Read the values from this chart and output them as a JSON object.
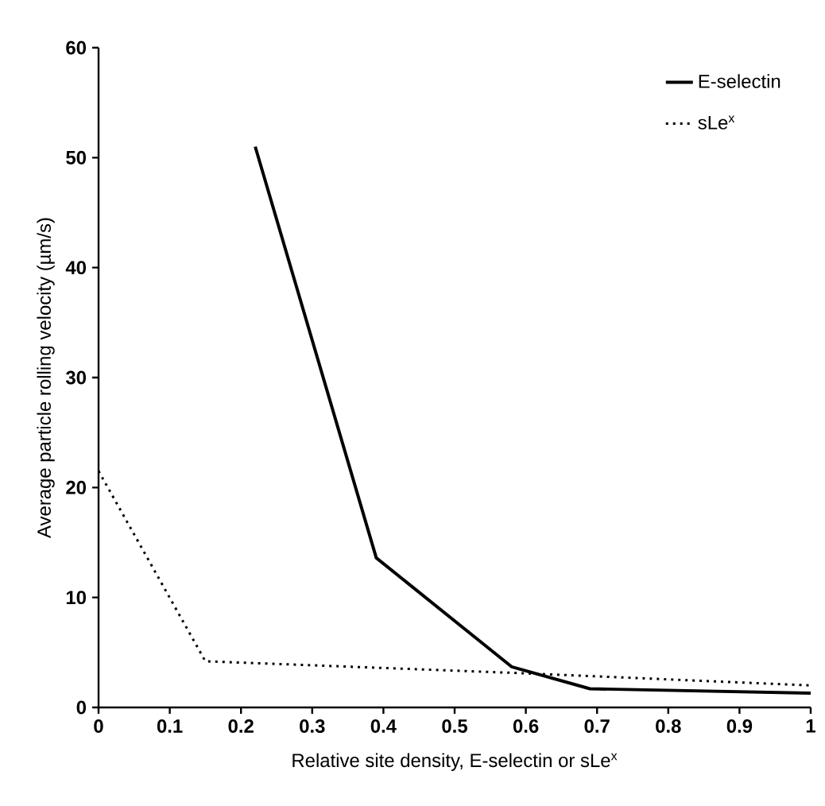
{
  "chart_data": {
    "type": "line",
    "xlabel": "Relative site density, E-selectin or sLe$^{x}$",
    "ylabel": "Average particle rolling velocity (µm/s)",
    "xlim": [
      0,
      1
    ],
    "ylim": [
      0,
      60
    ],
    "xticks": [
      {
        "value": 0,
        "label": "0"
      },
      0.1,
      0.2,
      0.3,
      0.4,
      0.5,
      0.6,
      0.7,
      0.8,
      0.9,
      {
        "value": 1,
        "label": "1"
      }
    ],
    "yticks": [
      0,
      10,
      20,
      30,
      40,
      50,
      60
    ],
    "legend": "top right",
    "grid": false,
    "marker": "none",
    "series": [
      {
        "name": "E-selectin",
        "color": "#000000",
        "line_style": "solid",
        "x": [
          0.22,
          0.39,
          0.58,
          0.69,
          1.0
        ],
        "values": [
          51,
          13.6,
          3.7,
          1.7,
          1.3
        ]
      },
      {
        "name": "sLe$^{x}$",
        "color": "#000000",
        "line_style": "dotted",
        "x": [
          0,
          0.15,
          0.6,
          1.0
        ],
        "values": [
          21.5,
          4.2,
          3.1,
          2.0
        ]
      }
    ]
  }
}
